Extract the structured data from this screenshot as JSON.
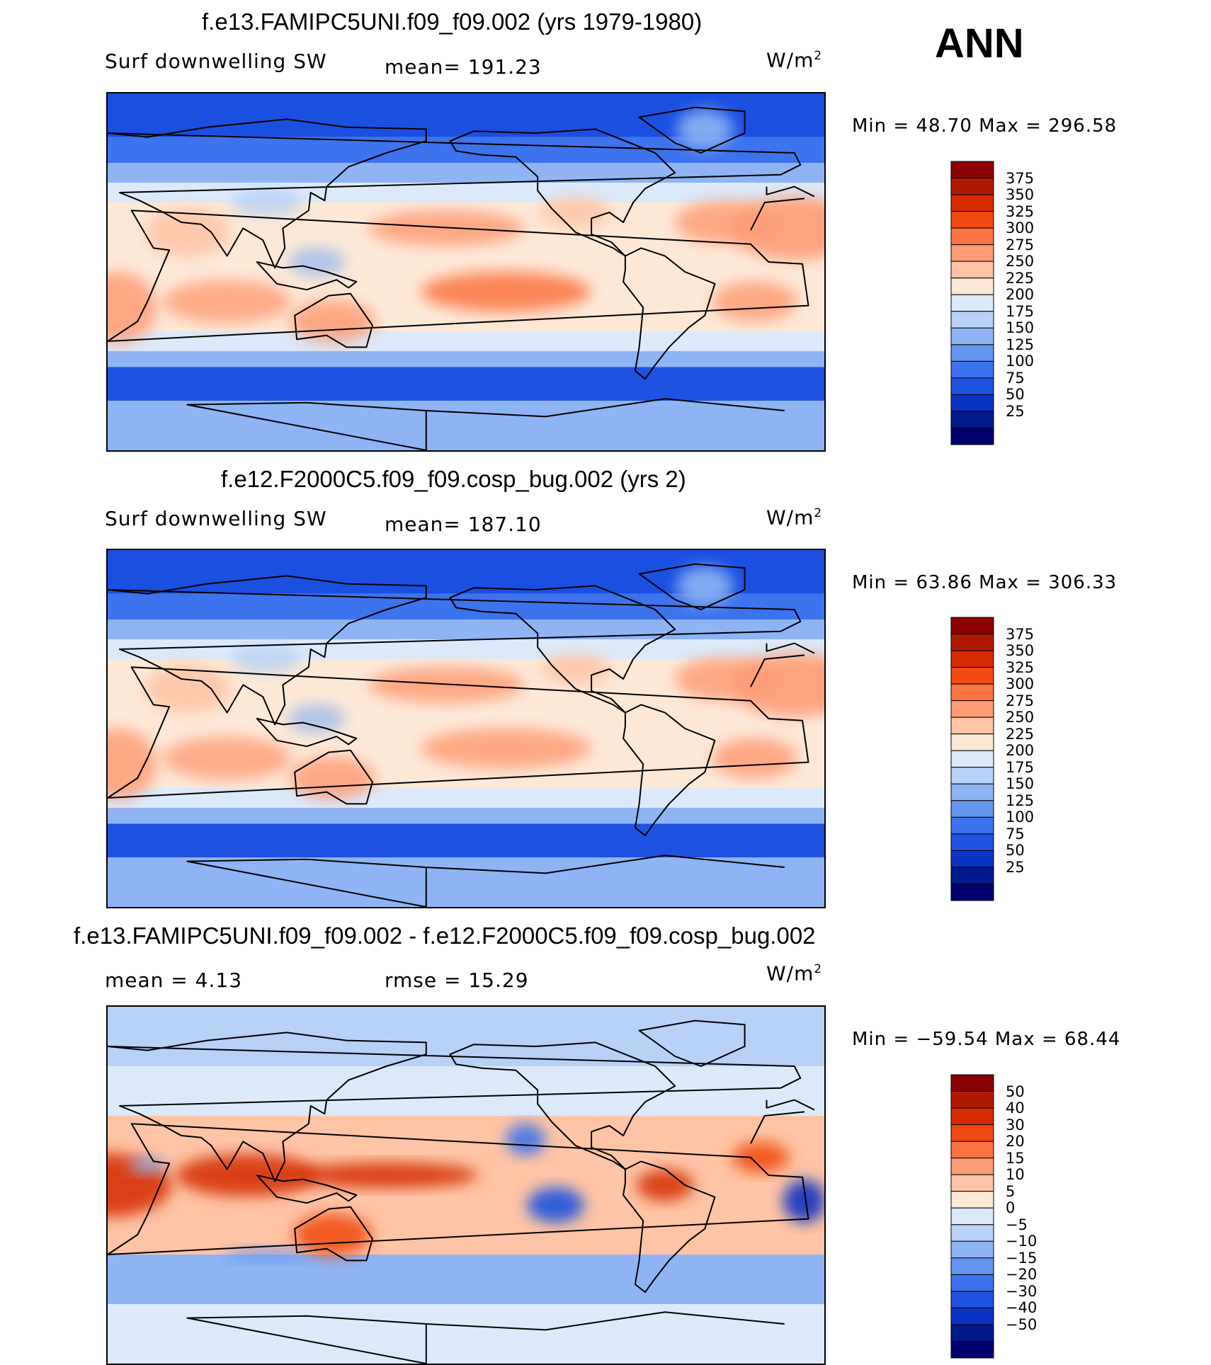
{
  "season": "ANN",
  "units_base": "W/m",
  "units_exp": "2",
  "panels": [
    {
      "title": "f.e13.FAMIPC5UNI.f09_f09.002 (yrs 1979-1980)",
      "left_label": "Surf  downwelling SW",
      "center_label": "mean=  191.23",
      "minmax": "Min  =    48.70  Max  =  296.58",
      "scale": "abs",
      "colorbar_levels": [
        "375",
        "350",
        "325",
        "300",
        "275",
        "250",
        "225",
        "200",
        "175",
        "150",
        "125",
        "100",
        "75",
        "50",
        "25"
      ]
    },
    {
      "title": "f.e12.F2000C5.f09_f09.cosp_bug.002 (yrs 2)",
      "left_label": "Surf  downwelling SW",
      "center_label": "mean=  187.10",
      "minmax": "Min  =    63.86  Max  =  306.33",
      "scale": "abs",
      "colorbar_levels": [
        "375",
        "350",
        "325",
        "300",
        "275",
        "250",
        "225",
        "200",
        "175",
        "150",
        "125",
        "100",
        "75",
        "50",
        "25"
      ]
    },
    {
      "title": "f.e13.FAMIPC5UNI.f09_f09.002 - f.e12.F2000C5.f09_f09.cosp_bug.002",
      "left_label": "mean  =     4.13",
      "center_label": "rmse  =     15.29",
      "minmax": "Min  = −59.54  Max  =    68.44",
      "scale": "diff",
      "colorbar_levels": [
        "50",
        "40",
        "30",
        "20",
        "15",
        "10",
        "5",
        "0",
        "−5",
        "−10",
        "−15",
        "−20",
        "−30",
        "−40",
        "−50"
      ]
    }
  ],
  "colors": {
    "ramp": [
      "#8b0000",
      "#b01a00",
      "#d42c00",
      "#f04a10",
      "#fc7343",
      "#fd9c76",
      "#fec4a5",
      "#fde8d6",
      "#dbe9fa",
      "#b7d1f7",
      "#8eb4f4",
      "#6496f0",
      "#3d73ec",
      "#1f52e0",
      "#0a33c4",
      "#001a8c",
      "#00006e"
    ],
    "ocean_abs_high": "#0f3fdd",
    "ocean_abs_low": "#5e8ff0"
  },
  "chart_data": [
    {
      "type": "heatmap",
      "title": "f.e13.FAMIPC5UNI.f09_f09.002 (yrs 1979-1980)",
      "variable": "Surf  downwelling SW",
      "mean": 191.23,
      "min": 48.7,
      "max": 296.58,
      "levels": [
        25,
        50,
        75,
        100,
        125,
        150,
        175,
        200,
        225,
        250,
        275,
        300,
        325,
        350,
        375
      ]
    },
    {
      "type": "heatmap",
      "title": "f.e12.F2000C5.f09_f09.cosp_bug.002 (yrs 2)",
      "variable": "Surf  downwelling SW",
      "mean": 187.1,
      "min": 63.86,
      "max": 306.33,
      "levels": [
        25,
        50,
        75,
        100,
        125,
        150,
        175,
        200,
        225,
        250,
        275,
        300,
        325,
        350,
        375
      ]
    },
    {
      "type": "heatmap",
      "title": "f.e13.FAMIPC5UNI.f09_f09.002 - f.e12.F2000C5.f09_f09.cosp_bug.002",
      "mean": 4.13,
      "rmse": 15.29,
      "min": -59.54,
      "max": 68.44,
      "levels": [
        -50,
        -40,
        -30,
        -20,
        -15,
        -10,
        -5,
        0,
        5,
        10,
        15,
        20,
        30,
        40,
        50
      ]
    }
  ]
}
